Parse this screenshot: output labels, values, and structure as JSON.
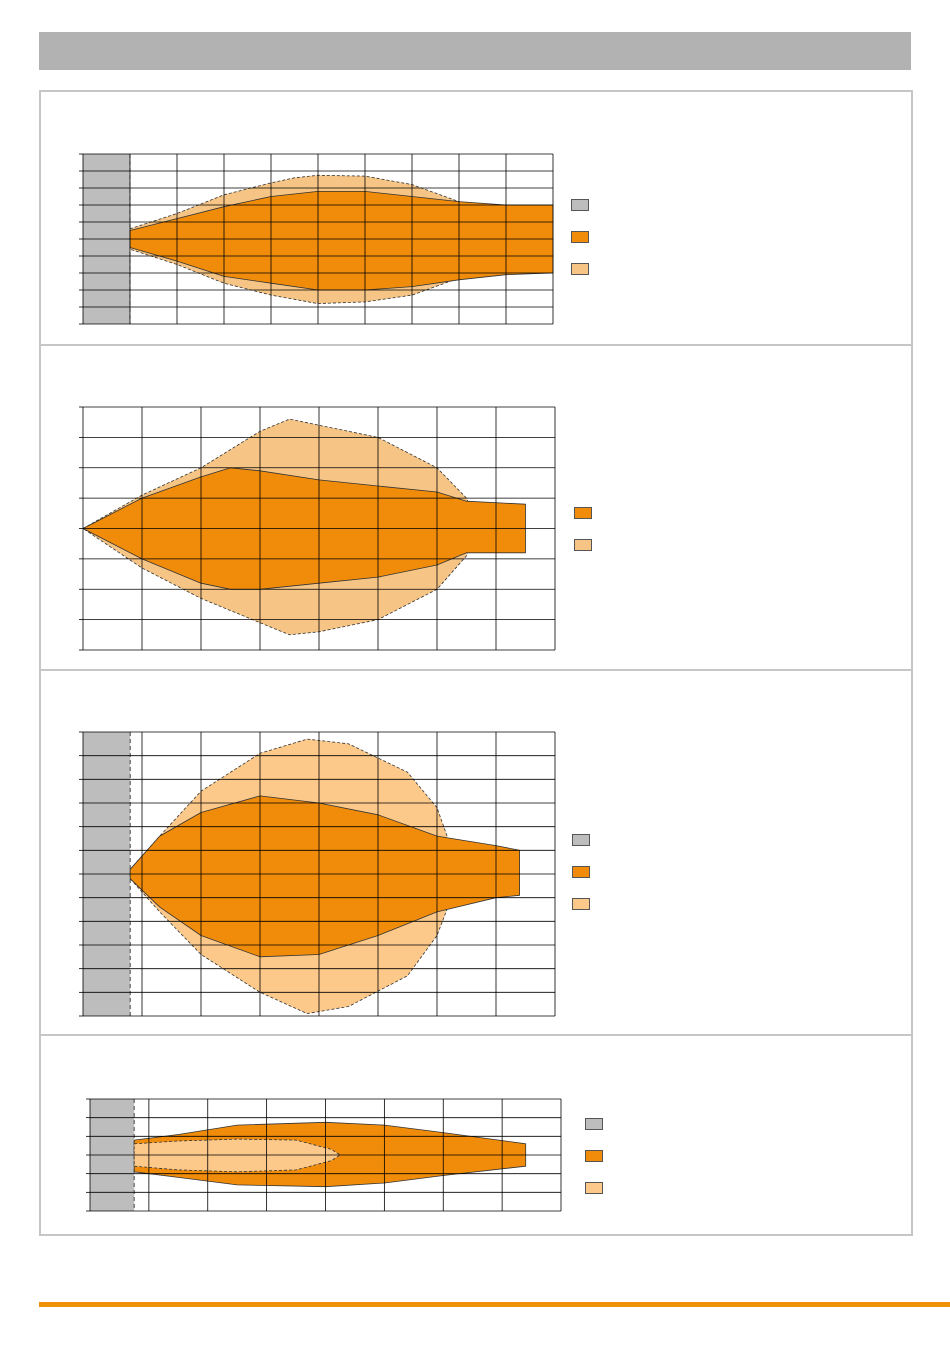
{
  "header": {
    "title": ""
  },
  "colors": {
    "header_bar": "#b2b2b2",
    "frame": "#c6c6c6",
    "footer_bar": "#f0910a",
    "obstruction": "#bdbdbd",
    "dark_orange": "#f08c0a",
    "light_orange": "#f6c585",
    "pale_orange": "#fdc98a"
  },
  "chart_data": [
    {
      "type": "area",
      "grid": true,
      "xlim": [
        0,
        10
      ],
      "ylim": [
        -5,
        5
      ],
      "x_ticks": 10,
      "y_ticks": 10,
      "obstruction": [
        0,
        1
      ],
      "legend_placement": "right",
      "legend": [
        {
          "color": "#bdbdbd",
          "label": ""
        },
        {
          "color": "#f08c0a",
          "label": ""
        },
        {
          "color": "#f6c585",
          "label": ""
        }
      ],
      "series": [
        {
          "style": "outer-dashed",
          "color": "#f6c585",
          "upper": [
            [
              1,
              0.6
            ],
            [
              2,
              1.5
            ],
            [
              3,
              2.6
            ],
            [
              4,
              3.3
            ],
            [
              4.5,
              3.6
            ],
            [
              5,
              3.75
            ],
            [
              6,
              3.7
            ],
            [
              7,
              3.2
            ],
            [
              8,
              2.2
            ],
            [
              8.7,
              0.7
            ]
          ],
          "lower": [
            [
              1,
              -0.6
            ],
            [
              2,
              -1.5
            ],
            [
              3,
              -2.6
            ],
            [
              4,
              -3.3
            ],
            [
              5,
              -3.8
            ],
            [
              6,
              -3.7
            ],
            [
              7,
              -3.3
            ],
            [
              8,
              -2.3
            ],
            [
              8.7,
              -0.6
            ]
          ]
        },
        {
          "style": "inner-solid",
          "color": "#f08c0a",
          "upper": [
            [
              1,
              0.5
            ],
            [
              2,
              1.2
            ],
            [
              3,
              1.9
            ],
            [
              4,
              2.5
            ],
            [
              5,
              2.8
            ],
            [
              6,
              2.8
            ],
            [
              7,
              2.5
            ],
            [
              8,
              2.2
            ],
            [
              9,
              2.0
            ],
            [
              10,
              2.0
            ]
          ],
          "lower": [
            [
              1,
              -0.5
            ],
            [
              2,
              -1.3
            ],
            [
              3,
              -2.2
            ],
            [
              4,
              -2.6
            ],
            [
              5,
              -3.0
            ],
            [
              6,
              -3.0
            ],
            [
              7,
              -2.8
            ],
            [
              8,
              -2.4
            ],
            [
              9,
              -2.1
            ],
            [
              10,
              -2.0
            ]
          ]
        }
      ]
    },
    {
      "type": "area",
      "grid": true,
      "xlim": [
        0,
        8
      ],
      "ylim": [
        -4,
        4
      ],
      "x_ticks": 8,
      "y_ticks": 8,
      "obstruction": null,
      "legend_placement": "right",
      "legend": [
        {
          "color": "#f08c0a",
          "label": ""
        },
        {
          "color": "#f6c585",
          "label": ""
        }
      ],
      "series": [
        {
          "style": "outer-dashed",
          "color": "#f6c585",
          "upper": [
            [
              0,
              0
            ],
            [
              1,
              1.1
            ],
            [
              2,
              2.0
            ],
            [
              3,
              3.2
            ],
            [
              3.5,
              3.6
            ],
            [
              4,
              3.4
            ],
            [
              5,
              3.0
            ],
            [
              6,
              2.0
            ],
            [
              6.5,
              1.0
            ],
            [
              6.7,
              0
            ]
          ],
          "lower": [
            [
              0,
              0
            ],
            [
              1,
              -1.3
            ],
            [
              2,
              -2.3
            ],
            [
              3,
              -3.1
            ],
            [
              3.5,
              -3.5
            ],
            [
              4,
              -3.4
            ],
            [
              5,
              -3.0
            ],
            [
              6,
              -2.0
            ],
            [
              6.5,
              -0.9
            ],
            [
              6.7,
              0
            ]
          ]
        },
        {
          "style": "inner-solid",
          "color": "#f08c0a",
          "upper": [
            [
              0,
              0
            ],
            [
              1,
              1.0
            ],
            [
              2,
              1.7
            ],
            [
              2.5,
              2.0
            ],
            [
              3,
              1.9
            ],
            [
              4,
              1.6
            ],
            [
              5,
              1.4
            ],
            [
              6,
              1.2
            ],
            [
              6.5,
              0.9
            ],
            [
              7.5,
              0.8
            ]
          ],
          "lower": [
            [
              0,
              0
            ],
            [
              1,
              -1.0
            ],
            [
              2,
              -1.8
            ],
            [
              2.5,
              -2.0
            ],
            [
              3,
              -2.0
            ],
            [
              4,
              -1.8
            ],
            [
              5,
              -1.6
            ],
            [
              6,
              -1.2
            ],
            [
              6.5,
              -0.8
            ],
            [
              7.5,
              -0.8
            ]
          ]
        }
      ]
    },
    {
      "type": "area",
      "grid": true,
      "xlim": [
        0,
        8
      ],
      "ylim": [
        -6,
        6
      ],
      "x_ticks": 8,
      "y_ticks": 12,
      "obstruction": [
        0,
        0.8
      ],
      "legend_placement": "right",
      "legend": [
        {
          "color": "#bdbdbd",
          "label": ""
        },
        {
          "color": "#f08c0a",
          "label": ""
        },
        {
          "color": "#fdc98a",
          "label": ""
        }
      ],
      "series": [
        {
          "style": "outer-dashed",
          "color": "#fdc98a",
          "upper": [
            [
              0.8,
              0.2
            ],
            [
              1.3,
              1.6
            ],
            [
              2,
              3.5
            ],
            [
              3,
              5.1
            ],
            [
              3.8,
              5.7
            ],
            [
              4.5,
              5.5
            ],
            [
              5.5,
              4.3
            ],
            [
              6,
              2.8
            ],
            [
              6.4,
              0
            ]
          ],
          "lower": [
            [
              0.8,
              -0.2
            ],
            [
              1.3,
              -1.6
            ],
            [
              2,
              -3.4
            ],
            [
              3,
              -5.0
            ],
            [
              3.8,
              -5.9
            ],
            [
              4.5,
              -5.6
            ],
            [
              5.5,
              -4.3
            ],
            [
              6,
              -2.6
            ],
            [
              6.4,
              0
            ]
          ]
        },
        {
          "style": "inner-solid",
          "color": "#f08c0a",
          "upper": [
            [
              0.8,
              0.2
            ],
            [
              1.3,
              1.6
            ],
            [
              2,
              2.6
            ],
            [
              3,
              3.3
            ],
            [
              4,
              3.0
            ],
            [
              5,
              2.5
            ],
            [
              6,
              1.6
            ],
            [
              7,
              1.2
            ],
            [
              7.4,
              1.0
            ]
          ],
          "lower": [
            [
              0.8,
              -0.2
            ],
            [
              1.3,
              -1.4
            ],
            [
              2,
              -2.6
            ],
            [
              3,
              -3.5
            ],
            [
              4,
              -3.4
            ],
            [
              5,
              -2.6
            ],
            [
              6,
              -1.6
            ],
            [
              7,
              -1.0
            ],
            [
              7.4,
              -0.9
            ]
          ]
        }
      ]
    },
    {
      "type": "area",
      "grid": true,
      "xlim": [
        0,
        8
      ],
      "ylim": [
        -3,
        3
      ],
      "x_ticks": 8,
      "y_ticks": 6,
      "obstruction": [
        0,
        0.75
      ],
      "legend_placement": "right",
      "legend": [
        {
          "color": "#bdbdbd",
          "label": ""
        },
        {
          "color": "#f08c0a",
          "label": ""
        },
        {
          "color": "#fdc98a",
          "label": ""
        }
      ],
      "series": [
        {
          "style": "inner-solid",
          "color": "#f08c0a",
          "upper": [
            [
              0.75,
              0.8
            ],
            [
              1.5,
              1.1
            ],
            [
              2.5,
              1.6
            ],
            [
              4,
              1.75
            ],
            [
              5,
              1.6
            ],
            [
              6,
              1.2
            ],
            [
              7.4,
              0.6
            ]
          ],
          "lower": [
            [
              0.75,
              -0.9
            ],
            [
              1.5,
              -1.2
            ],
            [
              2.5,
              -1.6
            ],
            [
              4,
              -1.7
            ],
            [
              5,
              -1.5
            ],
            [
              6,
              -1.1
            ],
            [
              7.4,
              -0.6
            ]
          ]
        },
        {
          "style": "outer-dashed",
          "color": "#fdc98a",
          "upper": [
            [
              0.75,
              0.6
            ],
            [
              1.5,
              0.75
            ],
            [
              2.5,
              0.85
            ],
            [
              3.5,
              0.8
            ],
            [
              4.1,
              0.3
            ],
            [
              4.25,
              0
            ]
          ],
          "lower": [
            [
              0.75,
              -0.6
            ],
            [
              1.5,
              -0.8
            ],
            [
              2.5,
              -0.9
            ],
            [
              3.5,
              -0.8
            ],
            [
              4.1,
              -0.3
            ],
            [
              4.25,
              0
            ]
          ]
        }
      ]
    }
  ]
}
